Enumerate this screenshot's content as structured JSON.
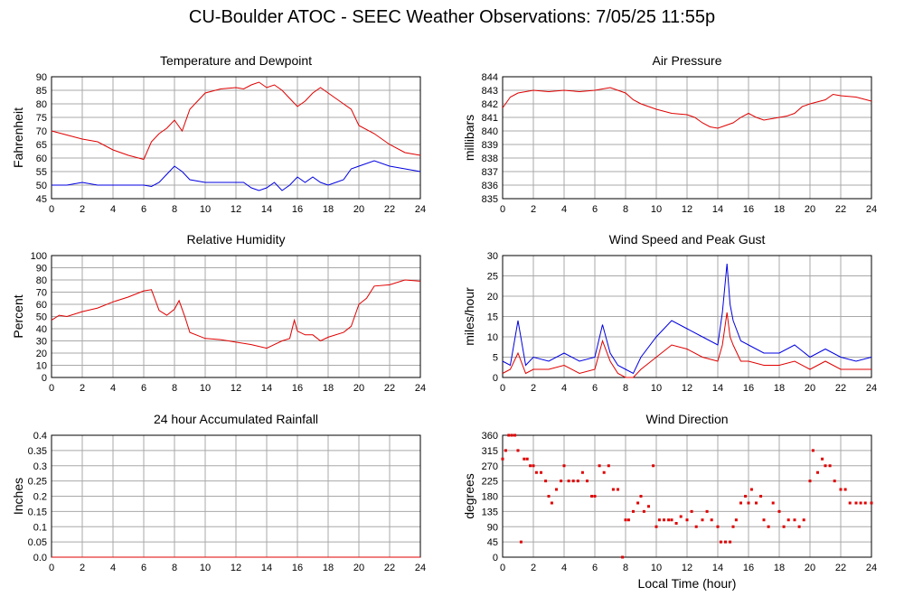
{
  "page_title": "CU-Boulder ATOC - SEEC Weather Observations: 7/05/25 11:55p",
  "footer_xlabel": "Local Time (hour)",
  "chart_data": [
    {
      "id": "temp",
      "type": "line",
      "title": "Temperature and Dewpoint",
      "ylabel": "Fahrenheit",
      "xlabel": "",
      "xlim": [
        0,
        24
      ],
      "ylim": [
        45,
        90
      ],
      "xticks": [
        0,
        2,
        4,
        6,
        8,
        10,
        12,
        14,
        16,
        18,
        20,
        22,
        24
      ],
      "yticks": [
        45,
        50,
        55,
        60,
        65,
        70,
        75,
        80,
        85,
        90
      ],
      "grid": true,
      "x": [
        0,
        1,
        2,
        3,
        4,
        5,
        6,
        6.5,
        7,
        7.5,
        8,
        8.5,
        9,
        10,
        11,
        12,
        12.5,
        13,
        13.5,
        14,
        14.5,
        15,
        15.5,
        16,
        16.5,
        17,
        17.5,
        18,
        18.5,
        19,
        19.5,
        20,
        21,
        22,
        23,
        24
      ],
      "series": [
        {
          "name": "",
          "color": "#e00000",
          "values": [
            70,
            68.5,
            67,
            66,
            63,
            61,
            59.5,
            66,
            69,
            71,
            74,
            70,
            78,
            84,
            85.5,
            86,
            85.5,
            87,
            88,
            86,
            87,
            85,
            82,
            79,
            81,
            84,
            86,
            84,
            82,
            80,
            78,
            72,
            69,
            65,
            62,
            61
          ]
        },
        {
          "name": "",
          "color": "#0000e0",
          "values": [
            50,
            50,
            51,
            50,
            50,
            50,
            50,
            49.5,
            51,
            54,
            57,
            55,
            52,
            51,
            51,
            51,
            51,
            49,
            48,
            49,
            51,
            48,
            50,
            53,
            51,
            53,
            51,
            50,
            51,
            52,
            56,
            57,
            59,
            57,
            56,
            55
          ]
        }
      ]
    },
    {
      "id": "pressure",
      "type": "line",
      "title": "Air Pressure",
      "ylabel": "millibars",
      "xlabel": "",
      "xlim": [
        0,
        24
      ],
      "ylim": [
        835,
        844
      ],
      "xticks": [
        0,
        2,
        4,
        6,
        8,
        10,
        12,
        14,
        16,
        18,
        20,
        22,
        24
      ],
      "yticks": [
        835,
        836,
        837,
        838,
        839,
        840,
        841,
        842,
        843,
        844
      ],
      "grid": true,
      "x": [
        0,
        0.5,
        1,
        2,
        3,
        4,
        5,
        6,
        7,
        7.5,
        8,
        8.5,
        9,
        10,
        11,
        12,
        12.5,
        13,
        13.5,
        14,
        14.5,
        15,
        15.5,
        16,
        16.5,
        17,
        17.5,
        18,
        18.5,
        19,
        19.5,
        20,
        21,
        21.5,
        22,
        23,
        24
      ],
      "series": [
        {
          "name": "",
          "color": "#e00000",
          "values": [
            841.7,
            842.5,
            842.8,
            843,
            842.9,
            843,
            842.9,
            843,
            843.2,
            843,
            842.8,
            842.3,
            842,
            841.6,
            841.3,
            841.2,
            841,
            840.6,
            840.3,
            840.2,
            840.4,
            840.6,
            841,
            841.3,
            841,
            840.8,
            840.9,
            841,
            841.1,
            841.3,
            841.8,
            842,
            842.3,
            842.7,
            842.6,
            842.5,
            842.2
          ]
        }
      ]
    },
    {
      "id": "rh",
      "type": "line",
      "title": "Relative Humidity",
      "ylabel": "Percent",
      "xlabel": "",
      "xlim": [
        0,
        24
      ],
      "ylim": [
        0,
        100
      ],
      "xticks": [
        0,
        2,
        4,
        6,
        8,
        10,
        12,
        14,
        16,
        18,
        20,
        22,
        24
      ],
      "yticks": [
        0,
        10,
        20,
        30,
        40,
        50,
        60,
        70,
        80,
        90,
        100
      ],
      "grid": true,
      "x": [
        0,
        0.5,
        1,
        2,
        3,
        4,
        5,
        6,
        6.5,
        7,
        7.5,
        8,
        8.3,
        8.7,
        9,
        10,
        11,
        12,
        13,
        14,
        15,
        15.5,
        15.8,
        16,
        16.5,
        17,
        17.5,
        18,
        19,
        19.5,
        20,
        20.5,
        21,
        22,
        23,
        24
      ],
      "series": [
        {
          "name": "",
          "color": "#e00000",
          "values": [
            47,
            51,
            50,
            54,
            57,
            62,
            66,
            71,
            72,
            55,
            51,
            56,
            63,
            49,
            37,
            32,
            31,
            29,
            27,
            24,
            30,
            32,
            47,
            38,
            35,
            35,
            30,
            33,
            37,
            42,
            60,
            65,
            75,
            76,
            80,
            79
          ]
        }
      ]
    },
    {
      "id": "wind",
      "type": "line",
      "title": "Wind Speed and Peak Gust",
      "ylabel": "miles/hour",
      "xlabel": "",
      "xlim": [
        0,
        24
      ],
      "ylim": [
        0,
        30
      ],
      "xticks": [
        0,
        2,
        4,
        6,
        8,
        10,
        12,
        14,
        16,
        18,
        20,
        22,
        24
      ],
      "yticks": [
        0,
        5,
        10,
        15,
        20,
        25,
        30
      ],
      "grid": true,
      "x": [
        0,
        0.5,
        1,
        1.5,
        2,
        3,
        4,
        5,
        6,
        6.5,
        7,
        7.5,
        8,
        8.5,
        9,
        10,
        11,
        12,
        13,
        14,
        14.3,
        14.6,
        14.8,
        15,
        15.5,
        16,
        17,
        18,
        19,
        20,
        21,
        22,
        23,
        24
      ],
      "series": [
        {
          "name": "",
          "color": "#0000e0",
          "values": [
            4,
            3,
            14,
            3,
            5,
            4,
            6,
            4,
            5,
            13,
            6,
            3,
            2,
            1,
            5,
            10,
            14,
            12,
            10,
            8,
            16,
            28,
            18,
            14,
            9,
            8,
            6,
            6,
            8,
            5,
            7,
            5,
            4,
            5
          ]
        },
        {
          "name": "",
          "color": "#e00000",
          "values": [
            1,
            2,
            6,
            1,
            2,
            2,
            3,
            1,
            2,
            9,
            4,
            1,
            0,
            0,
            2,
            5,
            8,
            7,
            5,
            4,
            8,
            16,
            10,
            8,
            4,
            4,
            3,
            3,
            4,
            2,
            4,
            2,
            2,
            2
          ]
        }
      ]
    },
    {
      "id": "rain",
      "type": "line",
      "title": "24 hour Accumulated Rainfall",
      "ylabel": "Inches",
      "xlabel": "",
      "xlim": [
        0,
        24
      ],
      "ylim": [
        0,
        0.4
      ],
      "xticks": [
        0,
        2,
        4,
        6,
        8,
        10,
        12,
        14,
        16,
        18,
        20,
        22,
        24
      ],
      "yticks": [
        0.0,
        0.05,
        0.1,
        0.15,
        0.2,
        0.25,
        0.3,
        0.35,
        0.4
      ],
      "ytick_labels": [
        "0.0",
        "0.05",
        "0.1",
        "0.15",
        "0.2",
        "0.25",
        "0.3",
        "0.35",
        "0.4"
      ],
      "grid": true,
      "x": [
        0,
        24
      ],
      "series": [
        {
          "name": "",
          "color": "#e00000",
          "values": [
            0,
            0
          ]
        }
      ]
    },
    {
      "id": "winddir",
      "type": "scatter",
      "title": "Wind Direction",
      "ylabel": "degrees",
      "xlabel": "Local Time (hour)",
      "xlim": [
        0,
        24
      ],
      "ylim": [
        0,
        360
      ],
      "xticks": [
        0,
        2,
        4,
        6,
        8,
        10,
        12,
        14,
        16,
        18,
        20,
        22,
        24
      ],
      "yticks": [
        0,
        45,
        90,
        135,
        180,
        225,
        270,
        315,
        360
      ],
      "grid": true,
      "x": [
        0,
        0.2,
        0.4,
        0.6,
        0.8,
        1,
        1.2,
        1.4,
        1.6,
        1.8,
        2,
        2.2,
        2.5,
        2.8,
        3,
        3.2,
        3.5,
        3.8,
        4,
        4.3,
        4.6,
        4.9,
        5.2,
        5.5,
        5.8,
        6,
        6.3,
        6.6,
        6.9,
        7.2,
        7.5,
        7.8,
        8,
        8.2,
        8.5,
        8.8,
        9,
        9.2,
        9.5,
        9.8,
        10,
        10.2,
        10.5,
        10.8,
        11,
        11.3,
        11.6,
        12,
        12.3,
        12.6,
        13,
        13.3,
        13.6,
        14,
        14.2,
        14.5,
        14.8,
        15,
        15.2,
        15.5,
        15.8,
        16,
        16.2,
        16.5,
        16.8,
        17,
        17.3,
        17.6,
        18,
        18.3,
        18.6,
        19,
        19.3,
        19.6,
        20,
        20.2,
        20.5,
        20.8,
        21,
        21.3,
        21.6,
        22,
        22.3,
        22.6,
        23,
        23.3,
        23.6,
        24
      ],
      "series": [
        {
          "name": "",
          "color": "#e00000",
          "values": [
            290,
            315,
            360,
            360,
            360,
            315,
            45,
            290,
            290,
            270,
            270,
            250,
            250,
            225,
            180,
            160,
            200,
            225,
            270,
            225,
            225,
            225,
            250,
            225,
            180,
            180,
            270,
            250,
            270,
            200,
            200,
            0,
            110,
            110,
            135,
            160,
            180,
            135,
            150,
            270,
            90,
            110,
            110,
            110,
            110,
            100,
            120,
            110,
            135,
            90,
            110,
            135,
            110,
            90,
            45,
            45,
            45,
            90,
            110,
            160,
            180,
            160,
            200,
            160,
            180,
            110,
            90,
            160,
            135,
            90,
            110,
            110,
            90,
            110,
            225,
            315,
            250,
            290,
            270,
            270,
            225,
            200,
            200,
            160,
            160,
            160,
            160,
            160
          ]
        }
      ]
    }
  ]
}
